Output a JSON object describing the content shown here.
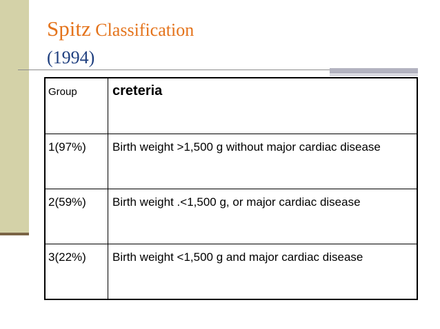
{
  "title": {
    "spitz": "Spitz",
    "classification": "Classification",
    "year": "(1994)"
  },
  "table": {
    "header": {
      "group": "Group",
      "criteria": "creteria"
    },
    "rows": [
      {
        "group": "1(97%)",
        "criteria": "Birth weight >1,500 g without major cardiac disease"
      },
      {
        "group": "2(59%)",
        "criteria": "Birth weight .<1,500 g, or major cardiac disease"
      },
      {
        "group": "3(22%)",
        "criteria": "Birth weight <1,500 g and major cardiac disease"
      }
    ]
  },
  "colors": {
    "accent_orange": "#e4731b",
    "title_blue": "#1f3f7f",
    "side_bar": "#d4d2a8",
    "side_rule": "#7a6446"
  }
}
